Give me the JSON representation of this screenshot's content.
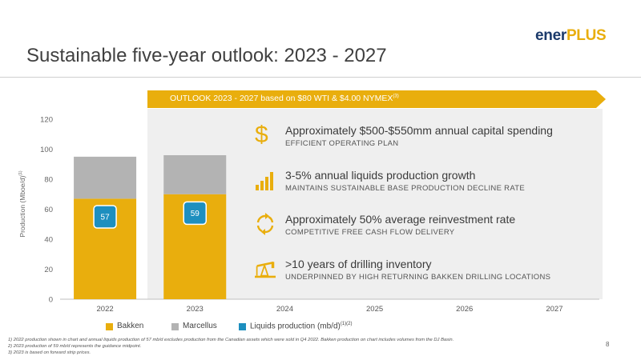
{
  "logo": {
    "part1": "ener",
    "part2": "PLUS"
  },
  "title": "Sustainable five-year outlook: 2023 - 2027",
  "banner": {
    "text": "OUTLOOK 2023 - 2027 based on $80 WTI & $4.00 NYMEX",
    "sup": "(3)"
  },
  "items": [
    {
      "icon": "dollar-icon",
      "head": "Approximately $500-$550mm annual capital spending",
      "sub": "EFFICIENT OPERATING PLAN"
    },
    {
      "icon": "bar-growth-icon",
      "head": "3-5% annual liquids production growth",
      "sub": "MAINTAINS SUSTAINABLE BASE PRODUCTION DECLINE RATE"
    },
    {
      "icon": "recycle-arrows-icon",
      "head": "Approximately 50% average reinvestment rate",
      "sub": "COMPETITIVE FREE CASH FLOW DELIVERY"
    },
    {
      "icon": "oil-pump-icon",
      "head": ">10 years of drilling inventory",
      "sub": "UNDERPINNED BY HIGH RETURNING BAKKEN DRILLING LOCATIONS"
    }
  ],
  "chart_data": {
    "type": "bar",
    "stacked": true,
    "categories": [
      "2022",
      "2023",
      "2024",
      "2025",
      "2026",
      "2027"
    ],
    "series": [
      {
        "name": "Bakken",
        "color": "#e9ae0d",
        "values": [
          67,
          70,
          null,
          null,
          null,
          null
        ]
      },
      {
        "name": "Marcellus",
        "color": "#b3b3b3",
        "values": [
          28,
          26,
          null,
          null,
          null,
          null
        ]
      }
    ],
    "liquids_production": {
      "name": "Liquids production (mb/d)",
      "name_sup": "(1)(2)",
      "color": "#1d8fbf",
      "values": [
        57,
        59,
        null,
        null,
        null,
        null
      ]
    },
    "ylabel": "Production (Mboe/d)",
    "ylabel_sup": "(1)",
    "ylim": [
      0,
      120
    ],
    "yticks": [
      0,
      20,
      40,
      60,
      80,
      100,
      120
    ],
    "grid": false,
    "legend": "bottom"
  },
  "footnotes": [
    "1)  2022 production shown in chart and annual liquids production of 57 mb/d excludes production from the Canadian assets which were sold in Q4 2022. Bakken production on chart includes volumes from the DJ Basin.",
    "2)  2023 production of 59 mb/d represents the guidance midpoint.",
    "3)  2023 is based on forward strip prices."
  ],
  "page_number": "8",
  "colors": {
    "accent": "#e9ae0d",
    "navy": "#1b3a6b",
    "liquids": "#1d8fbf",
    "gray_bar": "#b3b3b3"
  }
}
